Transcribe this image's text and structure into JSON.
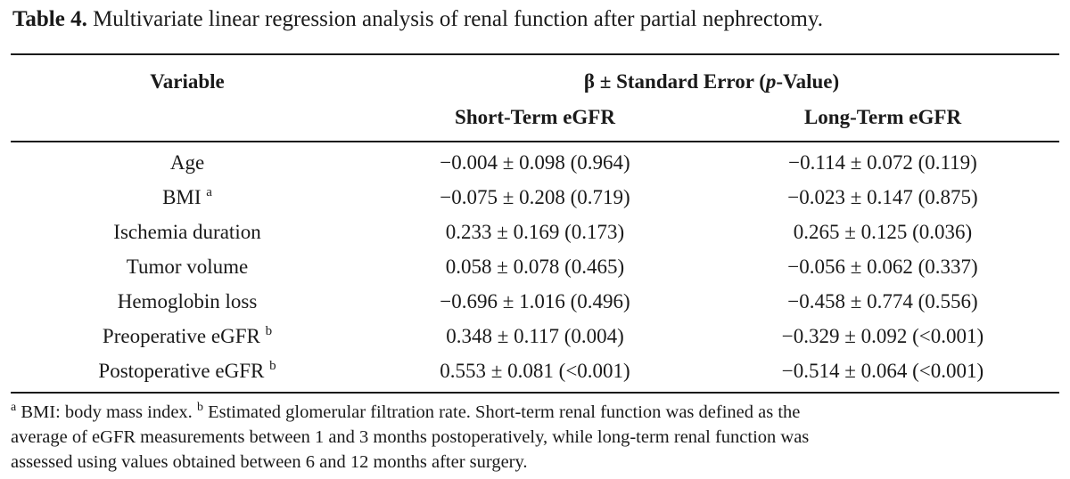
{
  "caption": {
    "label": "Table 4.",
    "text": "Multivariate linear regression analysis of renal function after partial nephrectomy."
  },
  "table": {
    "header": {
      "variable": "Variable",
      "group_prefix": "β ± Standard Error (",
      "group_italic": "p",
      "group_suffix": "-Value)",
      "col1": "Short-Term eGFR",
      "col2": "Long-Term eGFR"
    },
    "rows": [
      {
        "variable": "Age",
        "sup": "",
        "short_term": "−0.004 ± 0.098 (0.964)",
        "long_term": "−0.114 ± 0.072 (0.119)"
      },
      {
        "variable": "BMI",
        "sup": "a",
        "short_term": "−0.075 ± 0.208 (0.719)",
        "long_term": "−0.023 ± 0.147 (0.875)"
      },
      {
        "variable": "Ischemia duration",
        "sup": "",
        "short_term": "0.233 ± 0.169 (0.173)",
        "long_term": "0.265 ± 0.125 (0.036)"
      },
      {
        "variable": "Tumor volume",
        "sup": "",
        "short_term": "0.058 ± 0.078 (0.465)",
        "long_term": "−0.056 ± 0.062 (0.337)"
      },
      {
        "variable": "Hemoglobin loss",
        "sup": "",
        "short_term": "−0.696 ± 1.016 (0.496)",
        "long_term": "−0.458 ± 0.774 (0.556)"
      },
      {
        "variable": "Preoperative eGFR",
        "sup": "b",
        "short_term": "0.348 ± 0.117 (0.004)",
        "long_term": "−0.329 ± 0.092 (<0.001)"
      },
      {
        "variable": "Postoperative eGFR",
        "sup": "b",
        "short_term": "0.553 ± 0.081 (<0.001)",
        "long_term": "−0.514 ± 0.064 (<0.001)"
      }
    ]
  },
  "footnote": {
    "sup_a": "a",
    "text_a": " BMI: body mass index. ",
    "sup_b": "b",
    "text_b": " Estimated glomerular filtration rate. Short-term renal function was defined as the",
    "line2": "average of eGFR measurements between 1 and 3 months postoperatively, while long-term renal function was",
    "line3": "assessed using values obtained between 6 and 12 months after surgery."
  }
}
